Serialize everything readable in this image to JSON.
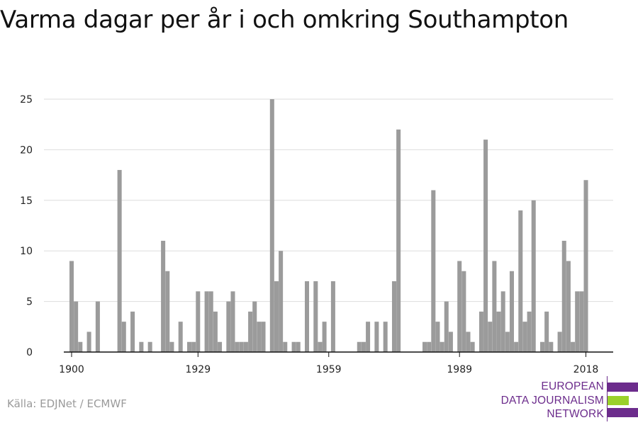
{
  "title": "Varma dagar per år i och omkring Southampton",
  "source": "Källa: EDJNet / ECMWF",
  "logo": {
    "lines": [
      "EUROPEAN",
      "DATA JOURNALISM",
      "NETWORK"
    ],
    "colors": {
      "purple": "#6c2c8c",
      "green": "#9ad12a"
    }
  },
  "colors": {
    "bar": "#9b9b9b",
    "grid": "#dddddd",
    "axis": "#111111"
  },
  "chart_data": {
    "type": "bar",
    "title": "Varma dagar per år i och omkring Southampton",
    "xlabel": "",
    "ylabel": "",
    "ylim": [
      0,
      25
    ],
    "yticks": [
      0,
      5,
      10,
      15,
      20,
      25
    ],
    "xticks": [
      1900,
      1929,
      1959,
      1989,
      2018
    ],
    "grid": true,
    "x": [
      1900,
      1901,
      1902,
      1903,
      1904,
      1905,
      1906,
      1907,
      1908,
      1909,
      1910,
      1911,
      1912,
      1913,
      1914,
      1915,
      1916,
      1917,
      1918,
      1919,
      1920,
      1921,
      1922,
      1923,
      1924,
      1925,
      1926,
      1927,
      1928,
      1929,
      1930,
      1931,
      1932,
      1933,
      1934,
      1935,
      1936,
      1937,
      1938,
      1939,
      1940,
      1941,
      1942,
      1943,
      1944,
      1945,
      1946,
      1947,
      1948,
      1949,
      1950,
      1951,
      1952,
      1953,
      1954,
      1955,
      1956,
      1957,
      1958,
      1959,
      1960,
      1961,
      1962,
      1963,
      1964,
      1965,
      1966,
      1967,
      1968,
      1969,
      1970,
      1971,
      1972,
      1973,
      1974,
      1975,
      1976,
      1977,
      1978,
      1979,
      1980,
      1981,
      1982,
      1983,
      1984,
      1985,
      1986,
      1987,
      1988,
      1989,
      1990,
      1991,
      1992,
      1993,
      1994,
      1995,
      1996,
      1997,
      1998,
      1999,
      2000,
      2001,
      2002,
      2003,
      2004,
      2005,
      2006,
      2007,
      2008,
      2009,
      2010,
      2011,
      2012,
      2013,
      2014,
      2015,
      2016,
      2017,
      2018
    ],
    "values": [
      9,
      5,
      1,
      0,
      2,
      0,
      5,
      0,
      0,
      0,
      0,
      18,
      3,
      0,
      4,
      0,
      1,
      0,
      1,
      0,
      0,
      11,
      8,
      1,
      0,
      3,
      0,
      1,
      1,
      6,
      0,
      6,
      6,
      4,
      1,
      0,
      5,
      6,
      1,
      1,
      1,
      4,
      5,
      3,
      3,
      0,
      25,
      7,
      10,
      1,
      0,
      1,
      1,
      0,
      7,
      0,
      7,
      1,
      3,
      0,
      7,
      0,
      0,
      0,
      0,
      0,
      1,
      1,
      3,
      0,
      3,
      0,
      3,
      0,
      7,
      22,
      0,
      0,
      0,
      0,
      0,
      1,
      1,
      16,
      3,
      1,
      5,
      2,
      0,
      9,
      8,
      2,
      1,
      0,
      4,
      21,
      3,
      9,
      4,
      6,
      2,
      8,
      1,
      14,
      3,
      4,
      15,
      0,
      1,
      4,
      1,
      0,
      2,
      11,
      9,
      1,
      6,
      6,
      17
    ]
  }
}
